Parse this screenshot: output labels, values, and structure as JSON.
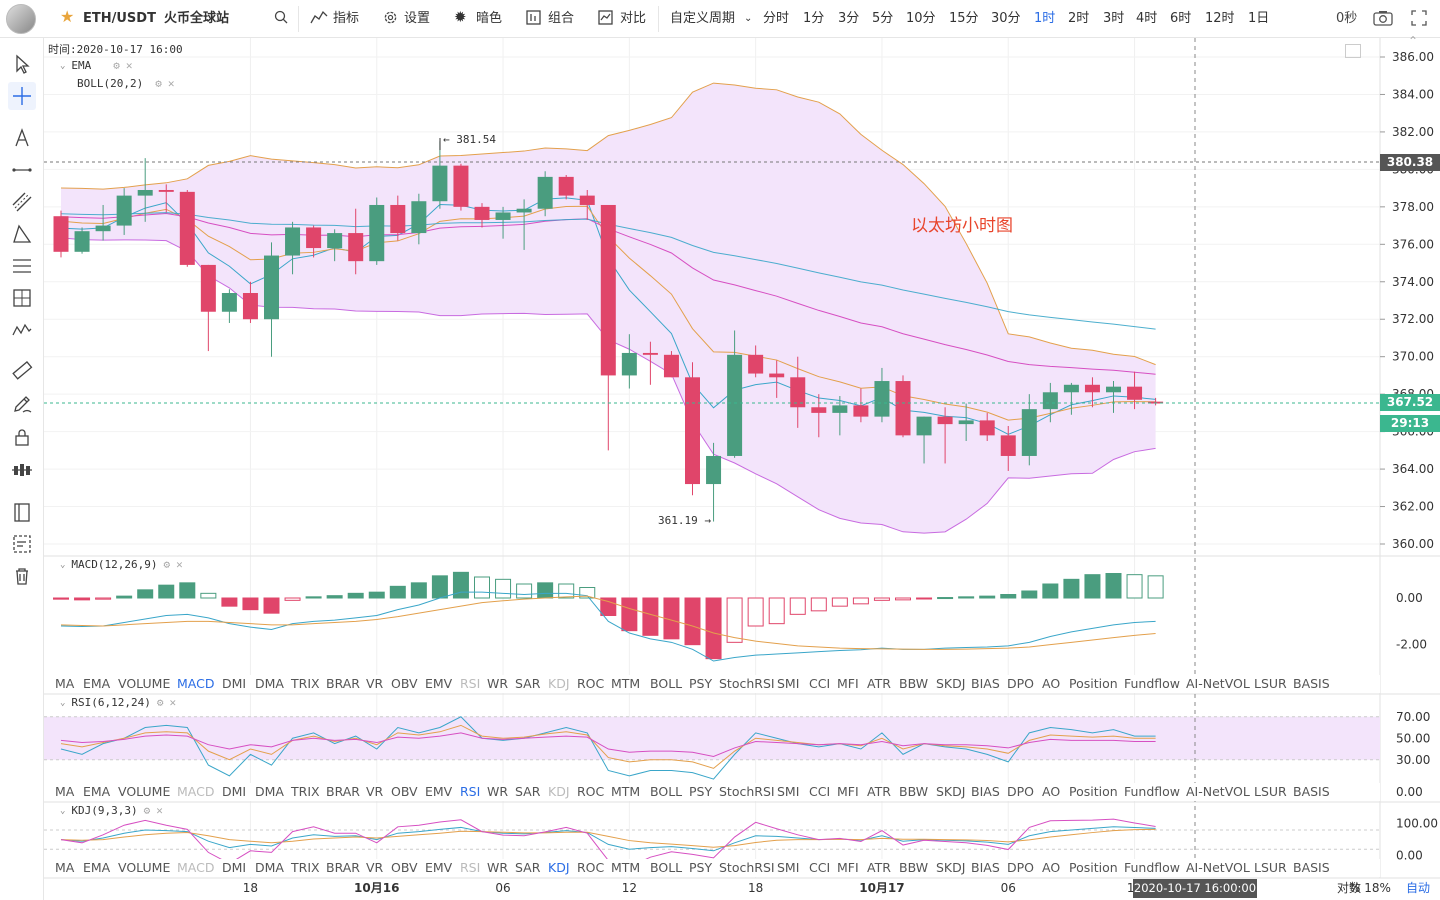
{
  "header": {
    "symbol": "ETH/USDT",
    "exchange": "火币全球站",
    "indicator_label": "指标",
    "settings_label": "设置",
    "theme_label": "暗色",
    "compose_label": "组合",
    "compare_label": "对比",
    "custom_period_label": "自定义周期",
    "periods": [
      "分时",
      "1分",
      "3分",
      "5分",
      "10分",
      "15分",
      "30分",
      "1时",
      "2时",
      "3时",
      "4时",
      "6时",
      "12时",
      "1日"
    ],
    "active_period": "1时",
    "countdown_label": "0秒"
  },
  "chart": {
    "time_label": "时间:2020-10-17 16:00",
    "overlays": [
      {
        "name": "EMA"
      },
      {
        "name": "BOLL(20,2)"
      }
    ],
    "annotation": "以太坊小时图",
    "high_marker": "← 381.54",
    "low_marker": "361.19 →",
    "price_axis": [
      "386.00",
      "384.00",
      "382.00",
      "380.00",
      "378.00",
      "376.00",
      "374.00",
      "372.00",
      "370.00",
      "368.00",
      "366.00",
      "364.00",
      "362.00",
      "360.00"
    ],
    "price_tags": {
      "hline": "380.38",
      "last": "367.52",
      "timer": "29:13"
    },
    "colors": {
      "up": "#4a9d7f",
      "down": "#e0456a",
      "boll_fill": "#f3e4fb",
      "boll_line": "#c86be0",
      "mid_line": "#d64fc2",
      "ema_line": "#3aa6c9",
      "orange_line": "#e3a04c",
      "accent": "#2b6de5"
    }
  },
  "chart_data": {
    "type": "candlestick",
    "y_range": [
      359.5,
      386.5
    ],
    "candles": [
      {
        "o": 377.5,
        "h": 377.8,
        "l": 375.3,
        "c": 375.6
      },
      {
        "o": 375.6,
        "h": 376.9,
        "l": 375.5,
        "c": 376.7
      },
      {
        "o": 376.7,
        "h": 378.1,
        "l": 376.2,
        "c": 377.0
      },
      {
        "o": 377.0,
        "h": 379.0,
        "l": 376.5,
        "c": 378.6
      },
      {
        "o": 378.6,
        "h": 380.6,
        "l": 377.2,
        "c": 378.9
      },
      {
        "o": 378.9,
        "h": 379.2,
        "l": 377.7,
        "c": 378.8
      },
      {
        "o": 378.8,
        "h": 378.9,
        "l": 374.8,
        "c": 374.9
      },
      {
        "o": 374.9,
        "h": 374.9,
        "l": 370.3,
        "c": 372.4
      },
      {
        "o": 372.4,
        "h": 373.6,
        "l": 371.8,
        "c": 373.4
      },
      {
        "o": 373.4,
        "h": 374.0,
        "l": 371.8,
        "c": 372.0
      },
      {
        "o": 372.0,
        "h": 376.1,
        "l": 370.0,
        "c": 375.4
      },
      {
        "o": 375.4,
        "h": 377.2,
        "l": 374.4,
        "c": 376.9
      },
      {
        "o": 376.9,
        "h": 377.0,
        "l": 375.3,
        "c": 375.8
      },
      {
        "o": 375.8,
        "h": 376.8,
        "l": 375.1,
        "c": 376.6
      },
      {
        "o": 376.6,
        "h": 377.9,
        "l": 374.4,
        "c": 375.1
      },
      {
        "o": 375.1,
        "h": 378.5,
        "l": 374.9,
        "c": 378.1
      },
      {
        "o": 378.1,
        "h": 378.6,
        "l": 376.2,
        "c": 376.6
      },
      {
        "o": 376.6,
        "h": 378.7,
        "l": 376.0,
        "c": 378.3
      },
      {
        "o": 378.3,
        "h": 381.5,
        "l": 377.9,
        "c": 380.2
      },
      {
        "o": 380.2,
        "h": 380.3,
        "l": 377.8,
        "c": 378.0
      },
      {
        "o": 378.0,
        "h": 378.2,
        "l": 376.9,
        "c": 377.3
      },
      {
        "o": 377.3,
        "h": 378.0,
        "l": 376.3,
        "c": 377.7
      },
      {
        "o": 377.7,
        "h": 378.4,
        "l": 375.7,
        "c": 377.9
      },
      {
        "o": 377.9,
        "h": 379.9,
        "l": 377.5,
        "c": 379.6
      },
      {
        "o": 379.6,
        "h": 379.7,
        "l": 378.4,
        "c": 378.6
      },
      {
        "o": 378.6,
        "h": 378.9,
        "l": 377.3,
        "c": 378.1
      },
      {
        "o": 378.1,
        "h": 378.1,
        "l": 365.0,
        "c": 369.0
      },
      {
        "o": 369.0,
        "h": 371.2,
        "l": 368.3,
        "c": 370.2
      },
      {
        "o": 370.2,
        "h": 370.8,
        "l": 368.5,
        "c": 370.1
      },
      {
        "o": 370.1,
        "h": 370.3,
        "l": 368.9,
        "c": 368.9
      },
      {
        "o": 368.9,
        "h": 369.7,
        "l": 362.6,
        "c": 363.2
      },
      {
        "o": 363.2,
        "h": 365.4,
        "l": 361.2,
        "c": 364.7
      },
      {
        "o": 364.7,
        "h": 371.4,
        "l": 364.6,
        "c": 370.1
      },
      {
        "o": 370.1,
        "h": 370.6,
        "l": 368.9,
        "c": 369.1
      },
      {
        "o": 369.1,
        "h": 369.8,
        "l": 367.8,
        "c": 368.9
      },
      {
        "o": 368.9,
        "h": 370.0,
        "l": 366.2,
        "c": 367.3
      },
      {
        "o": 367.3,
        "h": 368.0,
        "l": 365.7,
        "c": 367.0
      },
      {
        "o": 367.0,
        "h": 367.9,
        "l": 365.8,
        "c": 367.4
      },
      {
        "o": 367.4,
        "h": 368.3,
        "l": 366.5,
        "c": 366.8
      },
      {
        "o": 366.8,
        "h": 369.4,
        "l": 366.5,
        "c": 368.7
      },
      {
        "o": 368.7,
        "h": 369.0,
        "l": 365.7,
        "c": 365.8
      },
      {
        "o": 365.8,
        "h": 366.8,
        "l": 364.3,
        "c": 366.8
      },
      {
        "o": 366.8,
        "h": 367.3,
        "l": 364.3,
        "c": 366.4
      },
      {
        "o": 366.4,
        "h": 367.5,
        "l": 365.5,
        "c": 366.6
      },
      {
        "o": 366.6,
        "h": 367.0,
        "l": 365.5,
        "c": 365.8
      },
      {
        "o": 365.8,
        "h": 366.3,
        "l": 363.9,
        "c": 364.7
      },
      {
        "o": 364.7,
        "h": 368.0,
        "l": 364.2,
        "c": 367.2
      },
      {
        "o": 367.2,
        "h": 368.6,
        "l": 366.5,
        "c": 368.1
      },
      {
        "o": 368.1,
        "h": 368.6,
        "l": 366.9,
        "c": 368.5
      },
      {
        "o": 368.5,
        "h": 368.9,
        "l": 367.3,
        "c": 368.1
      },
      {
        "o": 368.1,
        "h": 368.7,
        "l": 367.0,
        "c": 368.4
      },
      {
        "o": 368.4,
        "h": 369.2,
        "l": 367.2,
        "c": 367.7
      },
      {
        "o": 367.6,
        "h": 367.8,
        "l": 367.4,
        "c": 367.5
      }
    ],
    "x_tick_labels": [
      "18",
      "10月16",
      "06",
      "12",
      "18",
      "10月17",
      "06",
      "12"
    ],
    "x_tick_candles": [
      9,
      15,
      21,
      27,
      33,
      39,
      45,
      51
    ],
    "macd": {
      "title": "MACD(12,26,9)",
      "axis": [
        "0.00",
        "-2.00"
      ],
      "y_range": [
        -3.0,
        1.2
      ],
      "hist": [
        -0.05,
        -0.08,
        -0.05,
        0.08,
        0.35,
        0.55,
        0.65,
        0.2,
        -0.35,
        -0.5,
        -0.65,
        -0.1,
        0.05,
        0.1,
        0.2,
        0.25,
        0.5,
        0.65,
        0.95,
        1.1,
        0.9,
        0.8,
        0.6,
        0.65,
        0.6,
        0.45,
        -0.75,
        -1.4,
        -1.6,
        -1.75,
        -2.0,
        -2.6,
        -1.9,
        -1.2,
        -1.1,
        -0.7,
        -0.55,
        -0.35,
        -0.25,
        -0.1,
        -0.08,
        -0.02,
        0.02,
        0.05,
        0.08,
        0.15,
        0.3,
        0.6,
        0.8,
        1.0,
        1.05,
        1.0,
        0.95
      ],
      "dif": [
        -1.2,
        -1.22,
        -1.2,
        -1.05,
        -0.9,
        -0.75,
        -0.7,
        -0.85,
        -1.1,
        -1.25,
        -1.35,
        -1.1,
        -1.0,
        -0.95,
        -0.85,
        -0.75,
        -0.5,
        -0.3,
        0.0,
        0.25,
        0.25,
        0.2,
        0.15,
        0.2,
        0.2,
        0.1,
        -1.0,
        -1.5,
        -1.75,
        -1.9,
        -2.2,
        -2.7,
        -2.55,
        -2.45,
        -2.4,
        -2.35,
        -2.3,
        -2.25,
        -2.22,
        -2.15,
        -2.2,
        -2.2,
        -2.15,
        -2.12,
        -2.1,
        -2.05,
        -1.9,
        -1.65,
        -1.45,
        -1.3,
        -1.15,
        -1.05,
        -1.0
      ],
      "dea": [
        -1.15,
        -1.18,
        -1.2,
        -1.15,
        -1.1,
        -1.05,
        -1.0,
        -1.0,
        -1.05,
        -1.1,
        -1.15,
        -1.15,
        -1.1,
        -1.05,
        -1.0,
        -0.92,
        -0.8,
        -0.65,
        -0.5,
        -0.35,
        -0.2,
        -0.12,
        -0.05,
        0.0,
        0.05,
        0.08,
        -0.15,
        -0.45,
        -0.7,
        -0.95,
        -1.2,
        -1.5,
        -1.7,
        -1.85,
        -1.95,
        -2.05,
        -2.1,
        -2.15,
        -2.17,
        -2.18,
        -2.19,
        -2.2,
        -2.2,
        -2.19,
        -2.17,
        -2.15,
        -2.1,
        -2.0,
        -1.9,
        -1.8,
        -1.7,
        -1.6,
        -1.52
      ]
    },
    "rsi": {
      "title": "RSI(6,12,24)",
      "axis": [
        "70.00",
        "50.00",
        "30.00",
        "0.00"
      ],
      "y_range": [
        0,
        80
      ],
      "rsi6": [
        40,
        35,
        45,
        50,
        60,
        62,
        60,
        25,
        15,
        35,
        25,
        50,
        55,
        45,
        52,
        40,
        60,
        55,
        60,
        70,
        50,
        48,
        50,
        55,
        60,
        55,
        20,
        15,
        20,
        20,
        18,
        12,
        35,
        55,
        50,
        45,
        42,
        45,
        40,
        55,
        35,
        45,
        42,
        40,
        35,
        28,
        55,
        60,
        58,
        55,
        58,
        52,
        52
      ],
      "rsi12": [
        45,
        42,
        46,
        50,
        55,
        56,
        55,
        38,
        30,
        40,
        35,
        48,
        52,
        47,
        50,
        44,
        55,
        53,
        56,
        62,
        52,
        50,
        51,
        54,
        56,
        53,
        32,
        28,
        30,
        30,
        28,
        22,
        38,
        50,
        48,
        46,
        44,
        45,
        43,
        50,
        40,
        45,
        43,
        42,
        40,
        36,
        48,
        53,
        52,
        51,
        52,
        50,
        50
      ],
      "rsi24": [
        48,
        46,
        47,
        49,
        52,
        53,
        52,
        44,
        40,
        44,
        42,
        48,
        50,
        48,
        49,
        46,
        51,
        50,
        52,
        55,
        50,
        49,
        50,
        51,
        52,
        51,
        40,
        37,
        38,
        38,
        37,
        33,
        41,
        47,
        46,
        45,
        44,
        45,
        44,
        47,
        43,
        45,
        44,
        44,
        43,
        41,
        46,
        49,
        48,
        48,
        48,
        47,
        47
      ]
    },
    "kdj": {
      "title": "KDJ(9,3,3)",
      "axis": [
        "100.00",
        "0.00"
      ],
      "y_range": [
        -20,
        130
      ],
      "k": [
        50,
        45,
        55,
        70,
        80,
        78,
        75,
        45,
        25,
        35,
        30,
        55,
        65,
        60,
        62,
        50,
        70,
        75,
        82,
        88,
        75,
        70,
        68,
        72,
        78,
        72,
        35,
        20,
        25,
        28,
        22,
        15,
        40,
        62,
        60,
        55,
        50,
        52,
        48,
        62,
        45,
        50,
        48,
        46,
        42,
        35,
        62,
        75,
        80,
        85,
        90,
        88,
        85
      ],
      "d": [
        50,
        48,
        50,
        58,
        65,
        70,
        72,
        62,
        50,
        45,
        40,
        45,
        52,
        55,
        58,
        55,
        60,
        65,
        70,
        76,
        75,
        73,
        71,
        71,
        73,
        73,
        60,
        47,
        40,
        36,
        31,
        26,
        31,
        41,
        48,
        50,
        50,
        51,
        50,
        54,
        51,
        51,
        50,
        49,
        47,
        43,
        49,
        58,
        65,
        72,
        78,
        81,
        82
      ],
      "j": [
        50,
        40,
        65,
        95,
        110,
        95,
        82,
        10,
        -25,
        15,
        10,
        75,
        90,
        70,
        70,
        40,
        90,
        95,
        105,
        112,
        75,
        64,
        62,
        74,
        88,
        70,
        -15,
        -35,
        -5,
        12,
        4,
        -7,
        58,
        104,
        84,
        65,
        50,
        54,
        44,
        78,
        33,
        48,
        44,
        40,
        32,
        19,
        88,
        109,
        110,
        111,
        114,
        102,
        91
      ]
    },
    "volume_hline": null
  },
  "indicator_bars": {
    "items": [
      "MA",
      "EMA",
      "VOLUME",
      "MACD",
      "DMI",
      "DMA",
      "TRIX",
      "BRAR",
      "VR",
      "OBV",
      "EMV",
      "RSI",
      "WR",
      "SAR",
      "KDJ",
      "ROC",
      "MTM",
      "BOLL",
      "PSY",
      "StochRSI",
      "SMI",
      "CCI",
      "MFI",
      "ATR",
      "BBW",
      "SKDJ",
      "BIAS",
      "DPO",
      "AO",
      "Position",
      "Fundflow",
      "AI-NetVOL",
      "LSUR",
      "BASIS"
    ],
    "bar1_active": "MACD",
    "bar1_disabled": [
      "RSI",
      "KDJ"
    ],
    "bar2_active": "RSI",
    "bar2_disabled": [
      "MACD",
      "KDJ"
    ],
    "bar3_active": "KDJ",
    "bar3_disabled": [
      "MACD",
      "RSI"
    ]
  },
  "footer": {
    "crosshair_time": "2020-10-17 16:00:00",
    "log_label": "对数",
    "pct_label": "% 18%",
    "auto_label": "自动"
  }
}
